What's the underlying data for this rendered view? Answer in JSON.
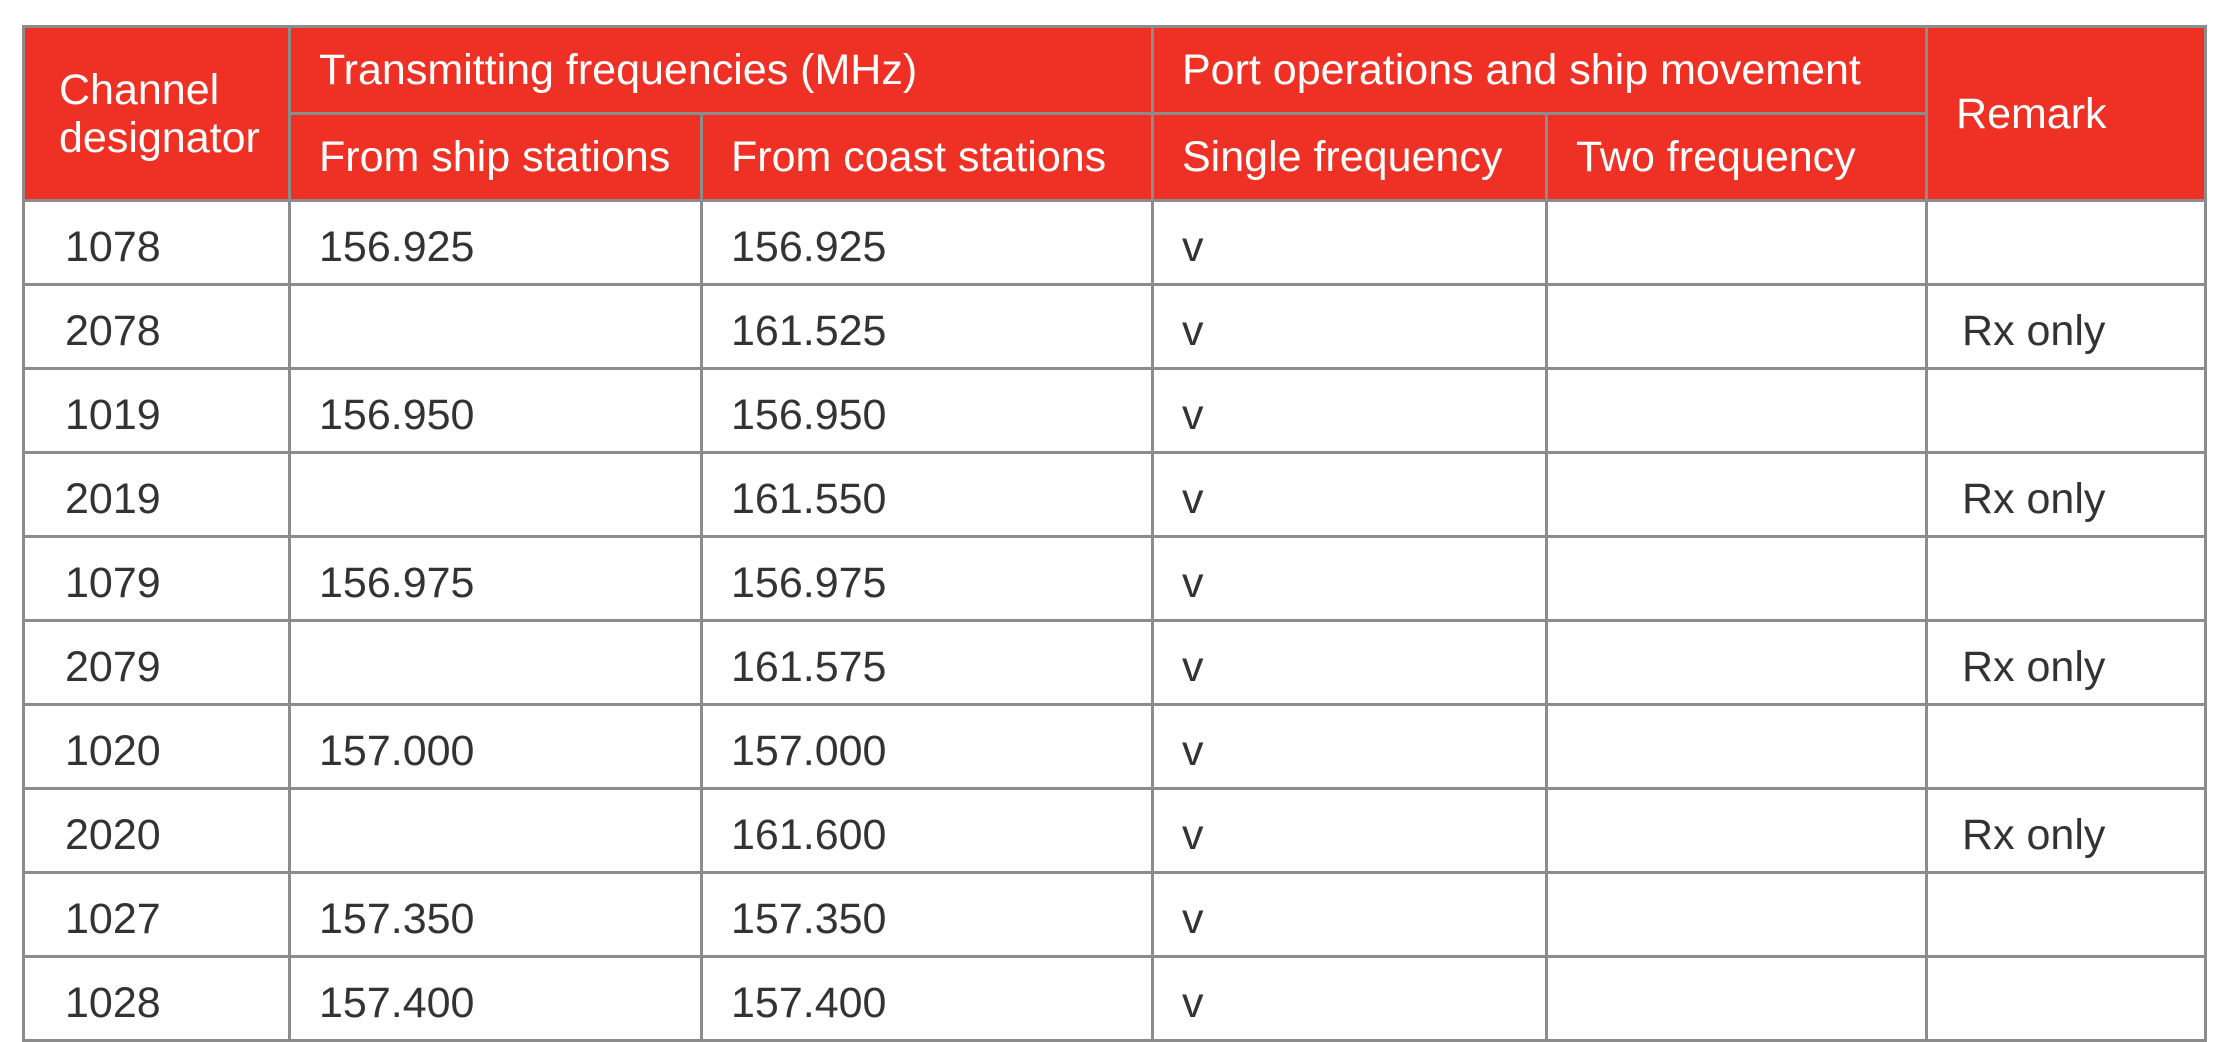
{
  "table": {
    "header": {
      "channel": "Channel\ndesignator",
      "transmitting": "Transmitting frequencies (MHz)",
      "port_ops": "Port operations and ship movement",
      "remark": "Remark",
      "from_ship": "From ship stations",
      "from_coast": "From coast stations",
      "single": "Single frequency",
      "two": "Two frequency"
    },
    "rows": [
      {
        "channel": "1078",
        "ship": "156.925",
        "coast": "156.925",
        "single": "v",
        "two": "",
        "remark": ""
      },
      {
        "channel": "2078",
        "ship": "",
        "coast": "161.525",
        "single": "v",
        "two": "",
        "remark": "Rx only"
      },
      {
        "channel": "1019",
        "ship": "156.950",
        "coast": "156.950",
        "single": "v",
        "two": "",
        "remark": ""
      },
      {
        "channel": "2019",
        "ship": "",
        "coast": "161.550",
        "single": "v",
        "two": "",
        "remark": "Rx only"
      },
      {
        "channel": "1079",
        "ship": "156.975",
        "coast": "156.975",
        "single": "v",
        "two": "",
        "remark": ""
      },
      {
        "channel": "2079",
        "ship": "",
        "coast": "161.575",
        "single": "v",
        "two": "",
        "remark": "Rx only"
      },
      {
        "channel": "1020",
        "ship": "157.000",
        "coast": "157.000",
        "single": "v",
        "two": "",
        "remark": ""
      },
      {
        "channel": "2020",
        "ship": "",
        "coast": "161.600",
        "single": "v",
        "two": "",
        "remark": "Rx only"
      },
      {
        "channel": "1027",
        "ship": "157.350",
        "coast": "157.350",
        "single": "v",
        "two": "",
        "remark": ""
      },
      {
        "channel": "1028",
        "ship": "157.400",
        "coast": "157.400",
        "single": "v",
        "two": "",
        "remark": ""
      }
    ]
  },
  "colors": {
    "header_bg": "#ee3124",
    "header_text": "#ffffff",
    "grid": "#8c8c8c",
    "body_text": "#333333"
  }
}
